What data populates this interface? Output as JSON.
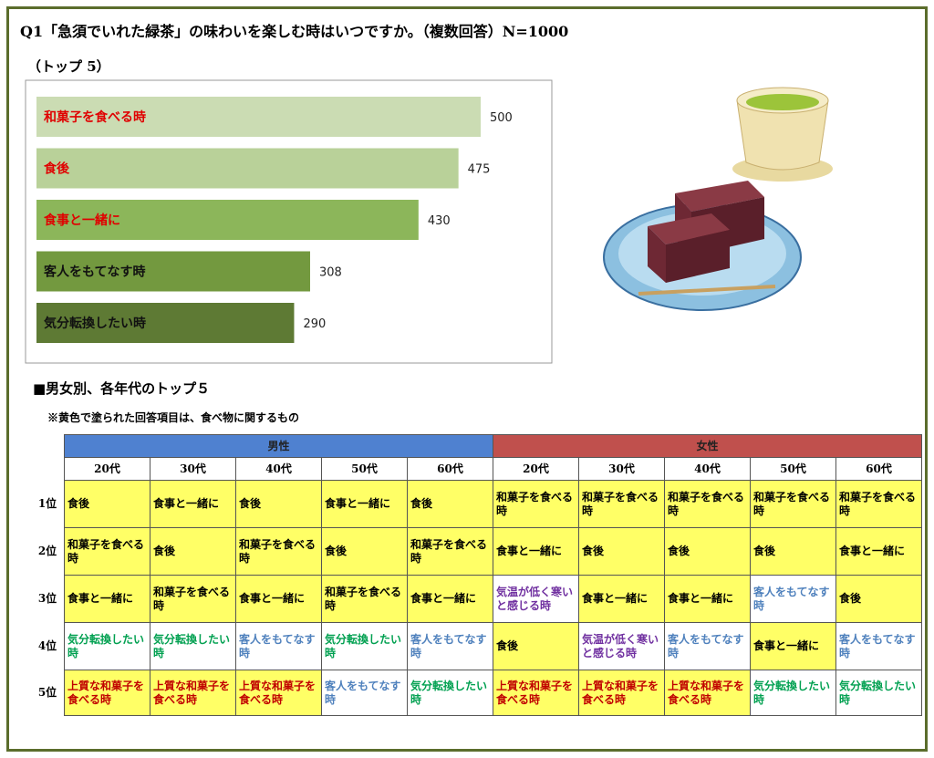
{
  "chart_data": {
    "type": "bar",
    "orientation": "horizontal",
    "title": "Q1「急須でいれた緑茶」の味わいを楽しむ時はいつですか。（複数回答）N=1000",
    "subtitle": "（トップ 5）",
    "categories": [
      "和菓子を食べる時",
      "食後",
      "食事と一緒に",
      "客人をもてなす時",
      "気分転換したい時"
    ],
    "values": [
      500,
      475,
      430,
      308,
      290
    ],
    "colors": [
      "#cbdcb3",
      "#b9d199",
      "#8cb65a",
      "#73993f",
      "#5e7a34"
    ],
    "label_colors": [
      "#e00000",
      "#e00000",
      "#e00000",
      "#111111",
      "#111111"
    ]
  },
  "section": {
    "heading": "■男女別、各年代のトップ５",
    "note": "※黄色で塗られた回答項目は、食べ物に関するもの"
  },
  "table": {
    "groups": [
      {
        "name": "男性",
        "color": "#4f81d0",
        "ages": [
          "20代",
          "30代",
          "40代",
          "50代",
          "60代"
        ]
      },
      {
        "name": "女性",
        "color": "#c0504d",
        "ages": [
          "20代",
          "30代",
          "40代",
          "50代",
          "60代"
        ]
      }
    ],
    "rank_labels": [
      "1位",
      "2位",
      "3位",
      "4位",
      "5位"
    ],
    "rows": [
      [
        {
          "text": "食後",
          "fill": "#ffff66",
          "color": "#000"
        },
        {
          "text": "食事と一緒に",
          "fill": "#ffff66",
          "color": "#000"
        },
        {
          "text": "食後",
          "fill": "#ffff66",
          "color": "#000"
        },
        {
          "text": "食事と一緒に",
          "fill": "#ffff66",
          "color": "#000"
        },
        {
          "text": "食後",
          "fill": "#ffff66",
          "color": "#000"
        },
        {
          "text": "和菓子を食べる時",
          "fill": "#ffff66",
          "color": "#000"
        },
        {
          "text": "和菓子を食べる時",
          "fill": "#ffff66",
          "color": "#000"
        },
        {
          "text": "和菓子を食べる時",
          "fill": "#ffff66",
          "color": "#000"
        },
        {
          "text": "和菓子を食べる時",
          "fill": "#ffff66",
          "color": "#000"
        },
        {
          "text": "和菓子を食べる時",
          "fill": "#ffff66",
          "color": "#000"
        }
      ],
      [
        {
          "text": "和菓子を食べる時",
          "fill": "#ffff66",
          "color": "#000"
        },
        {
          "text": "食後",
          "fill": "#ffff66",
          "color": "#000"
        },
        {
          "text": "和菓子を食べる時",
          "fill": "#ffff66",
          "color": "#000"
        },
        {
          "text": "食後",
          "fill": "#ffff66",
          "color": "#000"
        },
        {
          "text": "和菓子を食べる時",
          "fill": "#ffff66",
          "color": "#000"
        },
        {
          "text": "食事と一緒に",
          "fill": "#ffff66",
          "color": "#000"
        },
        {
          "text": "食後",
          "fill": "#ffff66",
          "color": "#000"
        },
        {
          "text": "食後",
          "fill": "#ffff66",
          "color": "#000"
        },
        {
          "text": "食後",
          "fill": "#ffff66",
          "color": "#000"
        },
        {
          "text": "食事と一緒に",
          "fill": "#ffff66",
          "color": "#000"
        }
      ],
      [
        {
          "text": "食事と一緒に",
          "fill": "#ffff66",
          "color": "#000"
        },
        {
          "text": "和菓子を食べる時",
          "fill": "#ffff66",
          "color": "#000"
        },
        {
          "text": "食事と一緒に",
          "fill": "#ffff66",
          "color": "#000"
        },
        {
          "text": "和菓子を食べる時",
          "fill": "#ffff66",
          "color": "#000"
        },
        {
          "text": "食事と一緒に",
          "fill": "#ffff66",
          "color": "#000"
        },
        {
          "text": "気温が低く寒いと感じる時",
          "fill": "#ffffff",
          "color": "#7030a0"
        },
        {
          "text": "食事と一緒に",
          "fill": "#ffff66",
          "color": "#000"
        },
        {
          "text": "食事と一緒に",
          "fill": "#ffff66",
          "color": "#000"
        },
        {
          "text": "客人をもてなす時",
          "fill": "#ffffff",
          "color": "#4f81bd"
        },
        {
          "text": "食後",
          "fill": "#ffff66",
          "color": "#000"
        }
      ],
      [
        {
          "text": "気分転換したい時",
          "fill": "#ffffff",
          "color": "#00a050"
        },
        {
          "text": "気分転換したい時",
          "fill": "#ffffff",
          "color": "#00a050"
        },
        {
          "text": "客人をもてなす時",
          "fill": "#ffffff",
          "color": "#4f81bd"
        },
        {
          "text": "気分転換したい時",
          "fill": "#ffffff",
          "color": "#00a050"
        },
        {
          "text": "客人をもてなす時",
          "fill": "#ffffff",
          "color": "#4f81bd"
        },
        {
          "text": "食後",
          "fill": "#ffff66",
          "color": "#000"
        },
        {
          "text": "気温が低く寒いと感じる時",
          "fill": "#ffffff",
          "color": "#7030a0"
        },
        {
          "text": "客人をもてなす時",
          "fill": "#ffffff",
          "color": "#4f81bd"
        },
        {
          "text": "食事と一緒に",
          "fill": "#ffff66",
          "color": "#000"
        },
        {
          "text": "客人をもてなす時",
          "fill": "#ffffff",
          "color": "#4f81bd"
        }
      ],
      [
        {
          "text": "上質な和菓子を食べる時",
          "fill": "#ffff66",
          "color": "#c00000"
        },
        {
          "text": "上質な和菓子を食べる時",
          "fill": "#ffff66",
          "color": "#c00000"
        },
        {
          "text": "上質な和菓子を食べる時",
          "fill": "#ffff66",
          "color": "#c00000"
        },
        {
          "text": "客人をもてなす時",
          "fill": "#ffffff",
          "color": "#4f81bd"
        },
        {
          "text": "気分転換したい時",
          "fill": "#ffffff",
          "color": "#00a050"
        },
        {
          "text": "上質な和菓子を食べる時",
          "fill": "#ffff66",
          "color": "#c00000"
        },
        {
          "text": "上質な和菓子を食べる時",
          "fill": "#ffff66",
          "color": "#c00000"
        },
        {
          "text": "上質な和菓子を食べる時",
          "fill": "#ffff66",
          "color": "#c00000"
        },
        {
          "text": "気分転換したい時",
          "fill": "#ffffff",
          "color": "#00a050"
        },
        {
          "text": "気分転換したい時",
          "fill": "#ffffff",
          "color": "#00a050"
        }
      ]
    ]
  }
}
